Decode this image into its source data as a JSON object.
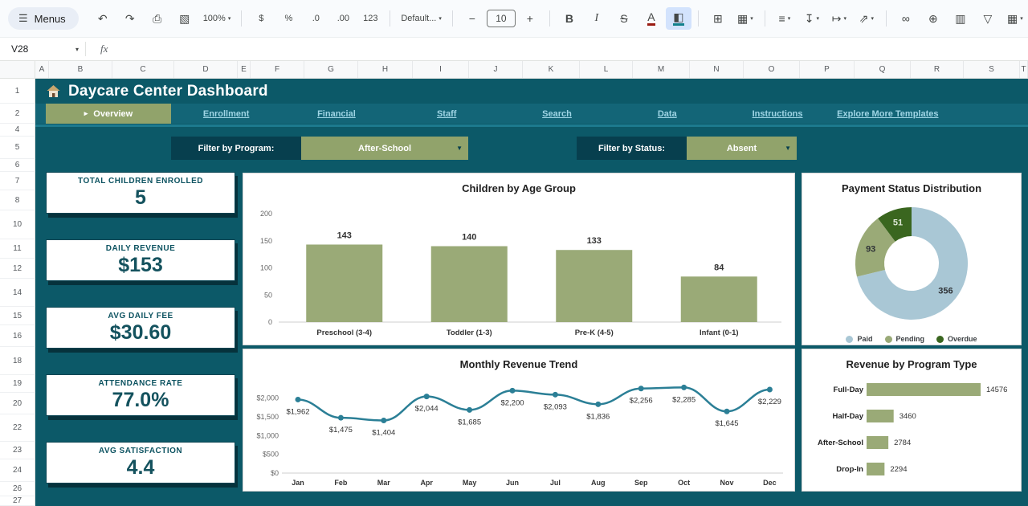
{
  "toolbar": {
    "menus_label": "Menus",
    "groups": [
      [
        {
          "name": "undo",
          "glyph": "↶"
        },
        {
          "name": "redo",
          "glyph": "↷"
        },
        {
          "name": "print",
          "glyph": "⎙"
        },
        {
          "name": "paint-format",
          "glyph": "▧"
        },
        {
          "name": "zoom",
          "glyph": "100%",
          "caret": true,
          "small": true
        }
      ],
      [
        {
          "name": "currency-format",
          "glyph": "$",
          "small": true
        },
        {
          "name": "percent-format",
          "glyph": "%",
          "small": true
        },
        {
          "name": "decrease-decimal-places",
          "glyph": ".0",
          "small": true
        },
        {
          "name": "increase-decimal-places",
          "glyph": ".00",
          "small": true
        },
        {
          "name": "more-number-formats",
          "glyph": "123",
          "small": true
        }
      ],
      [
        {
          "name": "font-family",
          "glyph": "Default...",
          "caret": true,
          "small": true
        }
      ],
      [
        {
          "name": "decrease-font-size",
          "glyph": "−"
        },
        {
          "name": "font-size",
          "glyph": "10",
          "box": true
        },
        {
          "name": "increase-font-size",
          "glyph": "+"
        }
      ],
      [
        {
          "name": "bold",
          "glyph": "B",
          "bold": true
        },
        {
          "name": "italic",
          "glyph": "I",
          "italic": true
        },
        {
          "name": "strikethrough",
          "glyph": "S",
          "strike": true
        },
        {
          "name": "text-color",
          "glyph": "A",
          "underbar": "#9a1b12"
        },
        {
          "name": "fill-color",
          "glyph": "◧",
          "underbar": "#12808c",
          "active": true
        }
      ],
      [
        {
          "name": "borders",
          "glyph": "⊞"
        },
        {
          "name": "merge-cells",
          "glyph": "▦",
          "caret": true
        }
      ],
      [
        {
          "name": "horizontal-align",
          "glyph": "≡",
          "caret": true
        },
        {
          "name": "vertical-align",
          "glyph": "↧",
          "caret": true
        },
        {
          "name": "text-wrapping",
          "glyph": "↦",
          "caret": true
        },
        {
          "name": "text-rotation",
          "glyph": "⇗",
          "caret": true
        }
      ],
      [
        {
          "name": "insert-link",
          "glyph": "∞"
        },
        {
          "name": "insert-comment",
          "glyph": "⊕"
        },
        {
          "name": "insert-chart",
          "glyph": "▥"
        },
        {
          "name": "create-filter",
          "glyph": "▽"
        },
        {
          "name": "table",
          "glyph": "▦",
          "caret": true
        },
        {
          "name": "functions",
          "glyph": "Σ"
        }
      ]
    ]
  },
  "formula_bar": {
    "cell_ref": "V28",
    "fx_label": "fx"
  },
  "grid": {
    "column_headers": [
      "A",
      "B",
      "C",
      "D",
      "E",
      "F",
      "G",
      "H",
      "I",
      "J",
      "K",
      "L",
      "M",
      "N",
      "O",
      "P",
      "Q",
      "R",
      "S",
      "T"
    ],
    "row_numbers": [
      "1",
      "2",
      "4",
      "5",
      "6",
      "7",
      "8",
      "10",
      "11",
      "12",
      "14",
      "15",
      "16",
      "18",
      "19",
      "20",
      "22",
      "23",
      "24",
      "26",
      "27"
    ]
  },
  "dashboard": {
    "title": "Daycare Center Dashboard",
    "nav": {
      "active_marker": "▸",
      "active": "Overview",
      "links": [
        "Enrollment",
        "Financial",
        "Staff",
        "Search",
        "Data",
        "Instructions",
        "Explore More Templates"
      ]
    },
    "filters": [
      {
        "id": "program",
        "label": "Filter by Program:",
        "value": "After-School"
      },
      {
        "id": "status",
        "label": "Filter by Status:",
        "value": "Absent"
      }
    ],
    "kpis": [
      {
        "label": "TOTAL CHILDREN ENROLLED",
        "value": "5"
      },
      {
        "label": "DAILY REVENUE",
        "value": "$153"
      },
      {
        "label": "AVG DAILY FEE",
        "value": "$30.60"
      },
      {
        "label": "ATTENDANCE RATE",
        "value": "77.0%"
      },
      {
        "label": "AVG SATISFACTION",
        "value": "4.4"
      }
    ]
  },
  "chart_data": [
    {
      "type": "bar",
      "title": "Children by Age Group",
      "categories": [
        "Preschool (3-4)",
        "Toddler (1-3)",
        "Pre-K (4-5)",
        "Infant (0-1)"
      ],
      "values": [
        143,
        140,
        133,
        84
      ],
      "ylim": [
        0,
        200
      ],
      "yticks": [
        0,
        50,
        100,
        150,
        200
      ],
      "bar_color": "#9aaa77",
      "xlabel": "",
      "ylabel": "",
      "legend": "none"
    },
    {
      "type": "pie",
      "donut": true,
      "title": "Payment Status Distribution",
      "labels": [
        "Paid",
        "Pending",
        "Overdue"
      ],
      "values": [
        356,
        93,
        51
      ],
      "colors": [
        "#a9c7d5",
        "#9aaa77",
        "#3a661f"
      ],
      "legend_position": "bottom"
    },
    {
      "type": "line",
      "title": "Monthly Revenue Trend",
      "x": [
        "Jan",
        "Feb",
        "Mar",
        "Apr",
        "May",
        "Jun",
        "Jul",
        "Aug",
        "Sep",
        "Oct",
        "Nov",
        "Dec"
      ],
      "values": [
        1962,
        1475,
        1404,
        2044,
        1685,
        2200,
        2093,
        1836,
        2256,
        2285,
        1645,
        2229
      ],
      "value_labels": [
        "$1,962",
        "$1,475",
        "$1,404",
        "$2,044",
        "$1,685",
        "$2,200",
        "$2,093",
        "$1,836",
        "$2,256",
        "$2,285",
        "$1,645",
        "$2,229"
      ],
      "yticks": [
        0,
        500,
        1000,
        1500,
        2000
      ],
      "ytick_labels": [
        "$0",
        "$500",
        "$1,000",
        "$1,500",
        "$2,000"
      ],
      "ylim": [
        0,
        2400
      ],
      "line_color": "#2b7f96"
    },
    {
      "type": "bar",
      "orientation": "horizontal",
      "title": "Revenue by Program Type",
      "categories": [
        "Full-Day",
        "Half-Day",
        "After-School",
        "Drop-In"
      ],
      "values": [
        14576,
        3460,
        2784,
        2294
      ],
      "value_labels": [
        "14576",
        "3460",
        "2784",
        "2294"
      ],
      "bar_color": "#9aaa77"
    }
  ]
}
